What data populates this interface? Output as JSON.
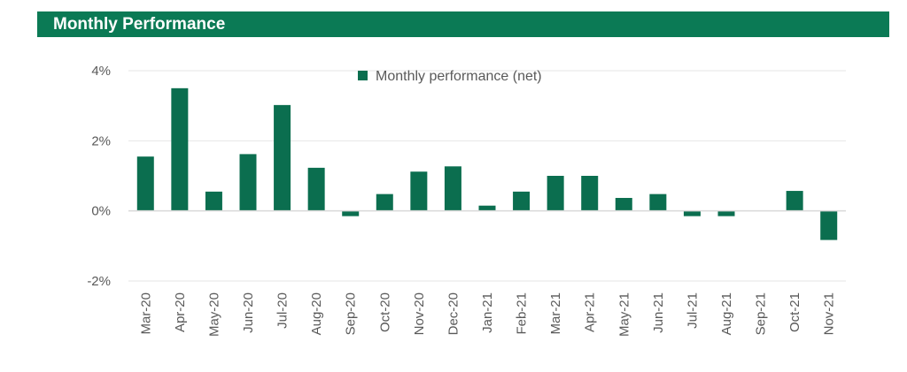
{
  "header": {
    "title": "Monthly Performance"
  },
  "colors": {
    "bar": "#0b6e4f",
    "header_bg": "#0b7a55",
    "grid": "#e6e6e6",
    "text": "#595959"
  },
  "chart_data": {
    "type": "bar",
    "title": "Monthly Performance",
    "xlabel": "",
    "ylabel": "",
    "ylim": [
      -2,
      4
    ],
    "yticks": [
      4,
      2,
      0,
      -2
    ],
    "ytick_labels": [
      "4%",
      "2%",
      "0%",
      "-2%"
    ],
    "grid": true,
    "legend_position": "top-center",
    "categories": [
      "Mar-20",
      "Apr-20",
      "May-20",
      "Jun-20",
      "Jul-20",
      "Aug-20",
      "Sep-20",
      "Oct-20",
      "Nov-20",
      "Dec-20",
      "Jan-21",
      "Feb-21",
      "Mar-21",
      "Apr-21",
      "May-21",
      "Jun-21",
      "Jul-21",
      "Aug-21",
      "Sep-21",
      "Oct-21",
      "Nov-21"
    ],
    "series": [
      {
        "name": "Monthly performance (net)",
        "values": [
          1.55,
          3.5,
          0.55,
          1.62,
          3.02,
          1.23,
          -0.15,
          0.48,
          1.12,
          1.27,
          0.15,
          0.55,
          1.0,
          1.0,
          0.37,
          0.48,
          -0.15,
          -0.15,
          0.0,
          0.57,
          -0.83
        ]
      }
    ]
  }
}
